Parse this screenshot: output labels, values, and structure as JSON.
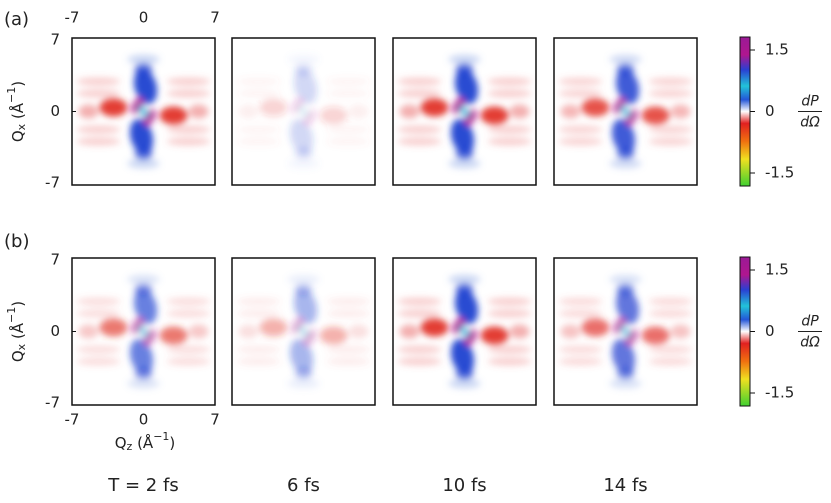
{
  "panel_labels": [
    "(a)",
    "(b)"
  ],
  "x_axis": {
    "ticks": [
      "-7",
      "0",
      "7"
    ],
    "label": {
      "base": "Q",
      "sub": "z",
      "unit": " (Å",
      "exp": "−1",
      "close": ")"
    }
  },
  "y_axis": {
    "ticks": [
      "7",
      "0",
      "-7"
    ],
    "label": {
      "base": "Q",
      "sub": "x",
      "unit": " (Å",
      "exp": "−1",
      "close": ")"
    }
  },
  "colorbar": {
    "ticks": [
      "1.5",
      "0",
      "-1.5"
    ],
    "numerator": "dP",
    "denominator": "dΩ"
  },
  "time_labels": [
    "T = 2 fs",
    "6 fs",
    "10 fs",
    "14 fs"
  ]
}
